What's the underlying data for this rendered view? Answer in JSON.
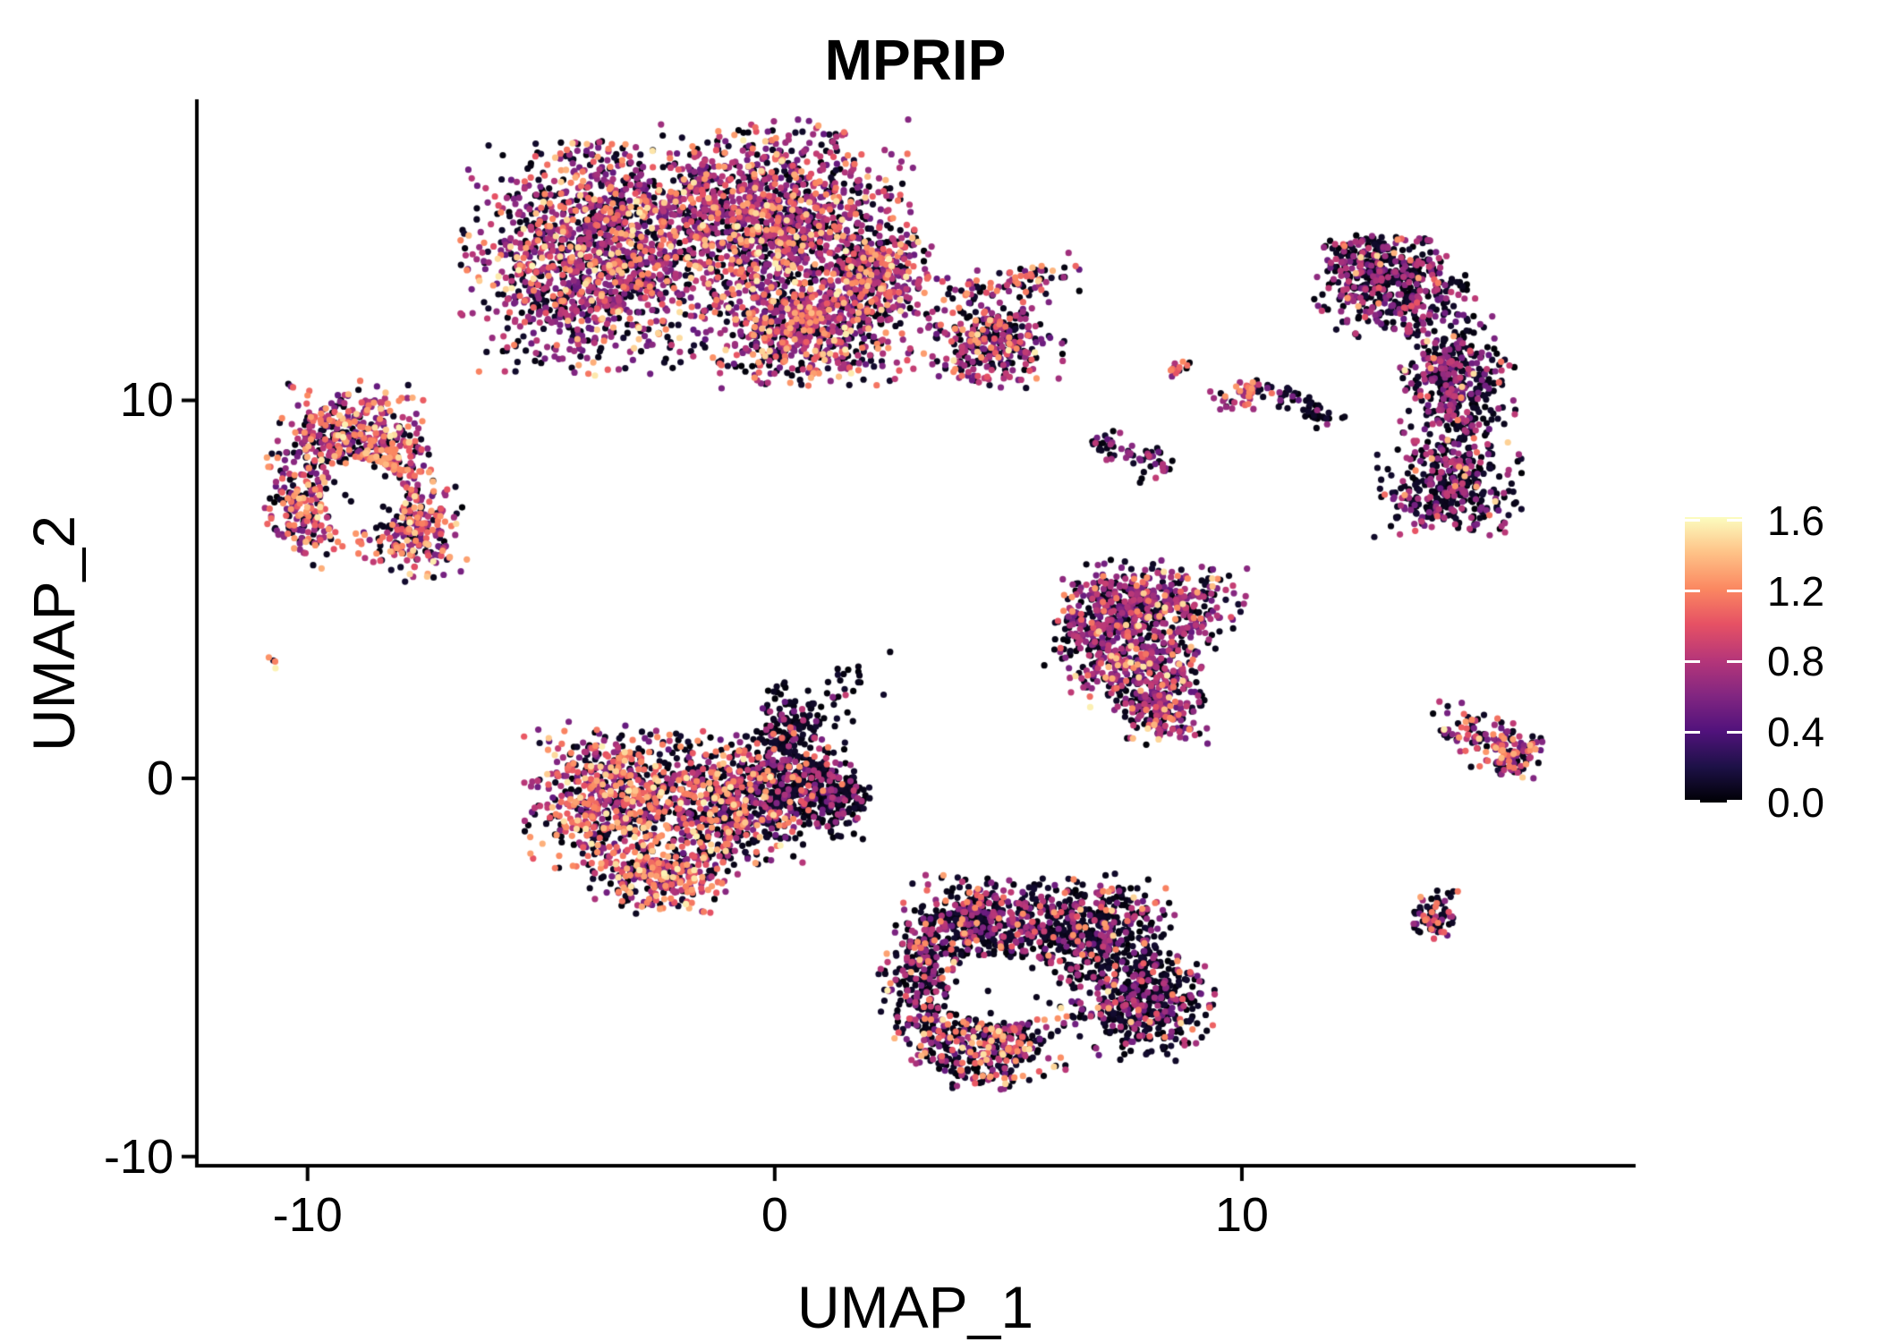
{
  "title": "MPRIP",
  "axes": {
    "x": {
      "label": "UMAP_1",
      "ticks": [
        {
          "label": "-10",
          "value": -10
        },
        {
          "label": "0",
          "value": 0
        },
        {
          "label": "10",
          "value": 10
        }
      ]
    },
    "y": {
      "label": "UMAP_2",
      "ticks": [
        {
          "label": "10",
          "value": 10
        },
        {
          "label": "0",
          "value": 0
        },
        {
          "label": "-10",
          "value": -10
        }
      ]
    }
  },
  "legend": {
    "bar_max": 1.62,
    "ticks": [
      {
        "label": "1.6",
        "value": 1.6
      },
      {
        "label": "1.2",
        "value": 1.2
      },
      {
        "label": "0.8",
        "value": 0.8
      },
      {
        "label": "0.4",
        "value": 0.4
      },
      {
        "label": "0.0",
        "value": 0.0
      }
    ]
  },
  "chart_data": {
    "type": "scatter",
    "title": "MPRIP",
    "xlabel": "UMAP_1",
    "ylabel": "UMAP_2",
    "xlim": [
      -12.37,
      18.39
    ],
    "ylim": [
      -10.24,
      17.91
    ],
    "grid": false,
    "legend_position": "right",
    "point_radius_px": 3.6,
    "seed": 42,
    "color_scale": {
      "name": "magma",
      "domain": [
        0,
        1.7
      ],
      "stops": [
        "#000004",
        "#1D1147",
        "#51127C",
        "#822681",
        "#B63679",
        "#E65164",
        "#FB8861",
        "#FEC287",
        "#FCFDBF"
      ]
    },
    "expression_bins": {
      "black": [
        0,
        0.14
      ],
      "purple": [
        0.5,
        0.92
      ],
      "orange": [
        1.02,
        1.38
      ],
      "cream": [
        1.4,
        1.66
      ]
    },
    "clusters": [
      {
        "name": "top-blob-1",
        "cx": -3.97,
        "cy": 13.77,
        "sx": 1.2,
        "sy": 1.37,
        "n": 1350,
        "mix": {
          "black": 0.34,
          "purple": 0.45,
          "orange": 0.16,
          "cream": 0.05
        }
      },
      {
        "name": "top-blob-2",
        "cx": -0.23,
        "cy": 14.83,
        "sx": 1.44,
        "sy": 1.13,
        "n": 1350,
        "mix": {
          "black": 0.34,
          "purple": 0.45,
          "orange": 0.16,
          "cream": 0.05
        }
      },
      {
        "name": "top-blob-3",
        "cx": 0.73,
        "cy": 11.99,
        "sx": 1.1,
        "sy": 0.77,
        "n": 700,
        "mix": {
          "black": 0.34,
          "purple": 0.45,
          "orange": 0.16,
          "cream": 0.05
        }
      },
      {
        "name": "top-blob-4",
        "cx": 2.26,
        "cy": 13.29,
        "sx": 0.53,
        "sy": 0.59,
        "n": 260,
        "mix": {
          "black": 0.34,
          "purple": 0.45,
          "orange": 0.16,
          "cream": 0.05
        }
      },
      {
        "name": "top-blob-5",
        "cx": 4.66,
        "cy": 11.52,
        "sx": 0.67,
        "sy": 0.53,
        "n": 300,
        "mix": {
          "black": 0.4,
          "purple": 0.42,
          "orange": 0.15,
          "cream": 0.03
        }
      },
      {
        "name": "topright-crescent-1",
        "cx": 13.29,
        "cy": 12.94,
        "sx": 0.77,
        "sy": 0.65,
        "n": 400,
        "mix": {
          "black": 0.6,
          "purple": 0.36,
          "orange": 0.03,
          "cream": 0.01
        }
      },
      {
        "name": "topright-crescent-2",
        "cx": 14.59,
        "cy": 10.33,
        "sx": 0.55,
        "sy": 0.89,
        "n": 430,
        "mix": {
          "black": 0.6,
          "purple": 0.36,
          "orange": 0.03,
          "cream": 0.01
        }
      },
      {
        "name": "topright-crescent-3",
        "cx": 14.4,
        "cy": 7.65,
        "sx": 0.69,
        "sy": 0.57,
        "n": 340,
        "mix": {
          "black": 0.6,
          "purple": 0.36,
          "orange": 0.03,
          "cream": 0.01
        }
      },
      {
        "name": "topright-crescent-4",
        "cx": 12.62,
        "cy": 13.58,
        "sx": 0.43,
        "sy": 0.38,
        "n": 130,
        "mix": {
          "black": 0.6,
          "purple": 0.36,
          "orange": 0.03,
          "cream": 0.01
        }
      },
      {
        "name": "left-ring-1",
        "cx": -9.11,
        "cy": 9.1,
        "sx": 0.69,
        "sy": 0.62,
        "n": 340,
        "mix": {
          "black": 0.25,
          "purple": 0.38,
          "orange": 0.3,
          "cream": 0.07
        }
      },
      {
        "name": "left-ring-2",
        "cx": -9.93,
        "cy": 7.2,
        "sx": 0.44,
        "sy": 0.74,
        "n": 240,
        "mix": {
          "black": 0.25,
          "purple": 0.38,
          "orange": 0.3,
          "cream": 0.07
        }
      },
      {
        "name": "left-ring-3",
        "cx": -7.82,
        "cy": 6.68,
        "sx": 0.54,
        "sy": 0.67,
        "n": 290,
        "mix": {
          "black": 0.25,
          "purple": 0.38,
          "orange": 0.3,
          "cream": 0.07
        }
      },
      {
        "name": "left-ring-4",
        "cx": -8.34,
        "cy": 8.39,
        "sx": 0.43,
        "sy": 0.48,
        "n": 150,
        "mix": {
          "black": 0.25,
          "purple": 0.38,
          "orange": 0.3,
          "cream": 0.07
        }
      },
      {
        "name": "far-left-dot",
        "cx": -10.73,
        "cy": 3.06,
        "sx": 0.07,
        "sy": 0.07,
        "n": 4,
        "mix": {
          "black": 0.25,
          "orange": 0.6,
          "cream": 0.15
        }
      },
      {
        "name": "center-blob-1",
        "cx": -3.43,
        "cy": -0.5,
        "sx": 0.85,
        "sy": 0.93,
        "n": 660,
        "mix": {
          "black": 0.32,
          "purple": 0.33,
          "orange": 0.27,
          "cream": 0.08
        }
      },
      {
        "name": "center-blob-2",
        "cx": -1.05,
        "cy": -0.64,
        "sx": 0.79,
        "sy": 0.83,
        "n": 620,
        "mix": {
          "black": 0.45,
          "purple": 0.3,
          "orange": 0.2,
          "cream": 0.05
        }
      },
      {
        "name": "center-blob-3",
        "cx": 0.67,
        "cy": -0.31,
        "sx": 0.6,
        "sy": 0.57,
        "n": 360,
        "mix": {
          "black": 0.74,
          "purple": 0.21,
          "orange": 0.05
        }
      },
      {
        "name": "center-blob-arm",
        "cx": 0.25,
        "cy": 1.3,
        "sx": 0.37,
        "sy": 0.55,
        "n": 150,
        "mix": {
          "black": 0.8,
          "purple": 0.15,
          "orange": 0.05
        }
      },
      {
        "name": "center-blob-5",
        "cx": -2.4,
        "cy": -2.54,
        "sx": 0.69,
        "sy": 0.45,
        "n": 310,
        "mix": {
          "black": 0.32,
          "purple": 0.33,
          "orange": 0.27,
          "cream": 0.08
        }
      },
      {
        "name": "center-blob-tip",
        "cx": 1.5,
        "cy": -0.52,
        "sx": 0.29,
        "sy": 0.3,
        "n": 90,
        "mix": {
          "black": 0.85,
          "purple": 0.15
        }
      },
      {
        "name": "right-triangle-1",
        "cx": 8.11,
        "cy": 4.57,
        "sx": 0.91,
        "sy": 0.54,
        "n": 430,
        "mix": {
          "black": 0.41,
          "purple": 0.46,
          "orange": 0.09,
          "cream": 0.04
        }
      },
      {
        "name": "right-triangle-2",
        "cx": 7.88,
        "cy": 2.91,
        "sx": 0.69,
        "sy": 0.55,
        "n": 340,
        "mix": {
          "black": 0.41,
          "purple": 0.46,
          "orange": 0.09,
          "cream": 0.04
        }
      },
      {
        "name": "right-triangle-3",
        "cx": 8.26,
        "cy": 1.73,
        "sx": 0.46,
        "sy": 0.38,
        "n": 160,
        "mix": {
          "black": 0.41,
          "purple": 0.46,
          "orange": 0.09,
          "cream": 0.04
        }
      },
      {
        "name": "right-triangle-4",
        "cx": 6.81,
        "cy": 4.0,
        "sx": 0.41,
        "sy": 0.62,
        "n": 170,
        "mix": {
          "black": 0.41,
          "purple": 0.46,
          "orange": 0.09,
          "cream": 0.04
        }
      },
      {
        "name": "bottom-blob-1",
        "cx": 4.31,
        "cy": -3.82,
        "sx": 0.69,
        "sy": 0.55,
        "n": 430,
        "mix": {
          "black": 0.66,
          "purple": 0.28,
          "orange": 0.05,
          "cream": 0.01
        }
      },
      {
        "name": "bottom-blob-2",
        "cx": 6.73,
        "cy": -4.05,
        "sx": 0.88,
        "sy": 0.67,
        "n": 560,
        "mix": {
          "black": 0.66,
          "purple": 0.28,
          "orange": 0.05,
          "cream": 0.01
        }
      },
      {
        "name": "bottom-blob-3",
        "cx": 7.88,
        "cy": -5.95,
        "sx": 0.69,
        "sy": 0.67,
        "n": 430,
        "mix": {
          "black": 0.66,
          "purple": 0.28,
          "orange": 0.05,
          "cream": 0.01
        }
      },
      {
        "name": "bottom-blob-4",
        "cx": 4.51,
        "cy": -6.9,
        "sx": 0.79,
        "sy": 0.59,
        "n": 430,
        "mix": {
          "black": 0.5,
          "purple": 0.26,
          "orange": 0.19,
          "cream": 0.05
        }
      },
      {
        "name": "bottom-blob-5",
        "cx": 3.16,
        "cy": -5.24,
        "sx": 0.41,
        "sy": 0.74,
        "n": 230,
        "mix": {
          "black": 0.66,
          "purple": 0.28,
          "orange": 0.05,
          "cream": 0.01
        }
      },
      {
        "name": "right-streak-blob",
        "cx": 15.82,
        "cy": 0.55,
        "sx": 0.34,
        "sy": 0.33,
        "n": 65,
        "mix": {
          "black": 0.4,
          "purple": 0.35,
          "orange": 0.22,
          "cream": 0.03
        }
      },
      {
        "name": "small-right-bottom",
        "cx": 14.06,
        "cy": -3.67,
        "sx": 0.29,
        "sy": 0.32,
        "n": 75,
        "mix": {
          "black": 0.62,
          "purple": 0.23,
          "orange": 0.15
        }
      },
      {
        "name": "tiny-mid-dot",
        "cx": 8.55,
        "cy": 10.85,
        "sx": 0.16,
        "sy": 0.14,
        "n": 15,
        "mix": {
          "black": 0.45,
          "purple": 0.15,
          "orange": 0.4
        }
      },
      {
        "name": "small-mid-1",
        "cx": 7.09,
        "cy": 8.86,
        "sx": 0.21,
        "sy": 0.2,
        "n": 24,
        "mix": {
          "black": 0.75,
          "purple": 0.25
        }
      },
      {
        "name": "small-mid-2",
        "cx": 7.59,
        "cy": 8.55,
        "sx": 0.12,
        "sy": 0.13,
        "n": 9,
        "mix": {
          "black": 0.2,
          "purple": 0.8
        }
      },
      {
        "name": "small-mid-3",
        "cx": 8.17,
        "cy": 8.29,
        "sx": 0.25,
        "sy": 0.25,
        "n": 28,
        "mix": {
          "black": 0.7,
          "purple": 0.3
        }
      }
    ],
    "segments": [
      {
        "name": "top-arm",
        "x1": 3.7,
        "y1": 12.77,
        "x2": 6.33,
        "y2": 13.48,
        "spread": 0.22,
        "n": 85,
        "mix": {
          "black": 0.45,
          "purple": 0.28,
          "orange": 0.24,
          "cream": 0.03
        }
      },
      {
        "name": "center-sparse-trail",
        "x1": 0.73,
        "y1": 1.68,
        "x2": 1.78,
        "y2": 2.75,
        "spread": 0.35,
        "n": 35,
        "mix": {
          "black": 0.9,
          "purple": 0.1
        }
      },
      {
        "name": "right-streak",
        "x1": 14.44,
        "y1": 1.4,
        "x2": 15.97,
        "y2": 0.78,
        "spread": 0.3,
        "n": 95,
        "mix": {
          "black": 0.35,
          "purple": 0.4,
          "orange": 0.22,
          "cream": 0.03
        }
      },
      {
        "name": "mid-streak-colored",
        "x1": 9.61,
        "y1": 9.93,
        "x2": 10.57,
        "y2": 10.4,
        "spread": 0.17,
        "n": 48,
        "mix": {
          "black": 0.35,
          "purple": 0.45,
          "orange": 0.2
        }
      },
      {
        "name": "mid-streak-black-tail",
        "x1": 10.7,
        "y1": 10.28,
        "x2": 11.95,
        "y2": 9.5,
        "spread": 0.14,
        "n": 48,
        "mix": {
          "black": 0.92,
          "purple": 0.08
        }
      }
    ],
    "holes": [
      {
        "cx": -8.8,
        "cy": 7.46,
        "rx": 0.88,
        "ry": 0.95,
        "keep": 0.1
      },
      {
        "cx": 4.89,
        "cy": -5.62,
        "rx": 1.19,
        "ry": 0.9,
        "keep": 0.12
      }
    ],
    "singles": [
      {
        "x": 6.52,
        "y": 12.89,
        "v": 0.02
      },
      {
        "x": 5.77,
        "y": 2.99,
        "v": 0.02
      }
    ]
  }
}
